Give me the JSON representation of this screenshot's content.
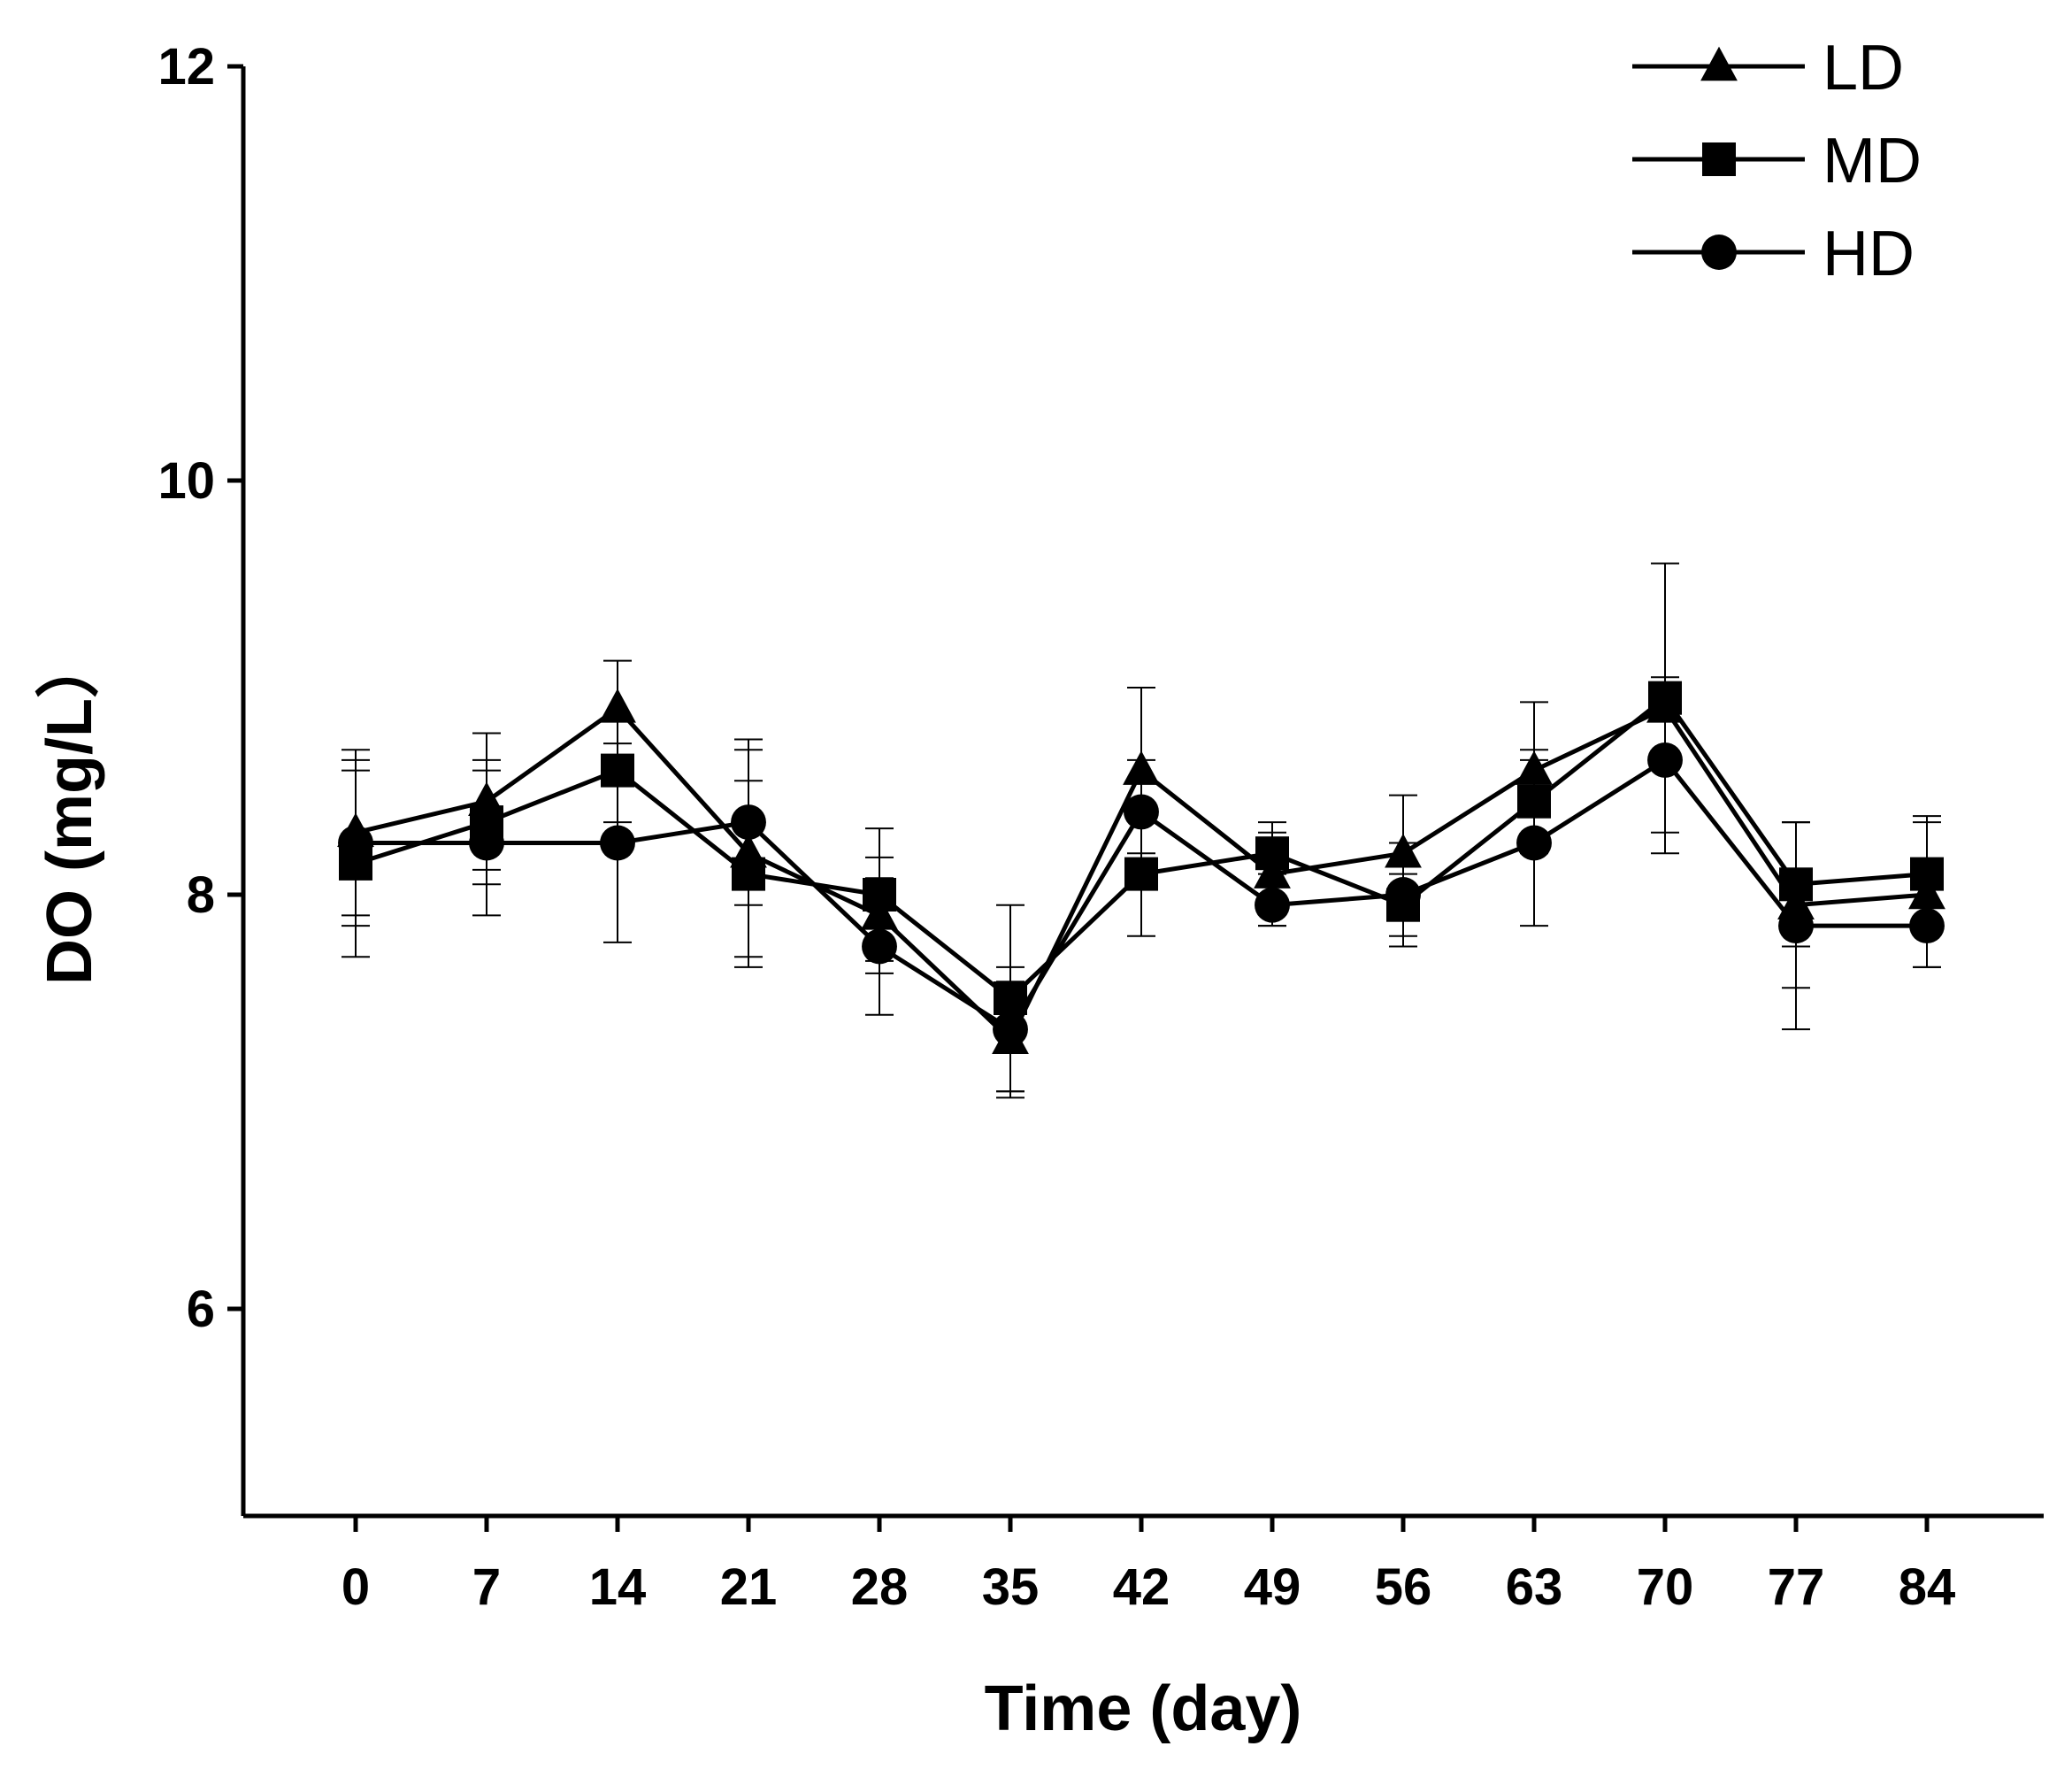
{
  "chart_data": {
    "type": "line",
    "xlabel": "Time (day)",
    "ylabel": "DO (mg/L）",
    "x": [
      0,
      7,
      14,
      21,
      28,
      35,
      42,
      49,
      56,
      63,
      70,
      77,
      84
    ],
    "x_tick_labels": [
      "0",
      "7",
      "14",
      "21",
      "28",
      "35",
      "42",
      "49",
      "56",
      "63",
      "70",
      "77",
      "84"
    ],
    "ylim": [
      5,
      12
    ],
    "y_ticks": [
      6,
      8,
      10,
      12
    ],
    "y_tick_labels": [
      "6",
      "8",
      "10",
      "12"
    ],
    "legend_position": "top-right",
    "grid": false,
    "series": [
      {
        "name": "LD",
        "marker": "triangle",
        "values": [
          8.3,
          8.45,
          8.9,
          8.2,
          7.9,
          7.3,
          8.6,
          8.1,
          8.2,
          8.6,
          8.9,
          7.95,
          8.0
        ],
        "errors": [
          0.4,
          0.33,
          0.23,
          0.5,
          0.28,
          0.28,
          0.4,
          0.25,
          0.28,
          0.33,
          0.7,
          0.4,
          0.35
        ]
      },
      {
        "name": "MD",
        "marker": "square",
        "values": [
          8.15,
          8.35,
          8.6,
          8.1,
          8.0,
          7.5,
          8.1,
          8.2,
          7.95,
          8.45,
          8.95,
          8.05,
          8.1
        ],
        "errors": [
          0.45,
          0.3,
          0.25,
          0.45,
          0.32,
          0.45,
          0.3,
          0.1,
          0.15,
          0.25,
          0.1,
          0.3,
          0.28
        ]
      },
      {
        "name": "HD",
        "marker": "circle",
        "values": [
          8.25,
          8.25,
          8.25,
          8.35,
          7.75,
          7.35,
          8.4,
          7.95,
          8.0,
          8.25,
          8.65,
          7.85,
          7.85
        ],
        "errors": [
          0.4,
          0.35,
          0.48,
          0.4,
          0.33,
          0.3,
          0.25,
          0.1,
          0.25,
          0.4,
          0.35,
          0.5,
          0.2
        ]
      }
    ]
  }
}
